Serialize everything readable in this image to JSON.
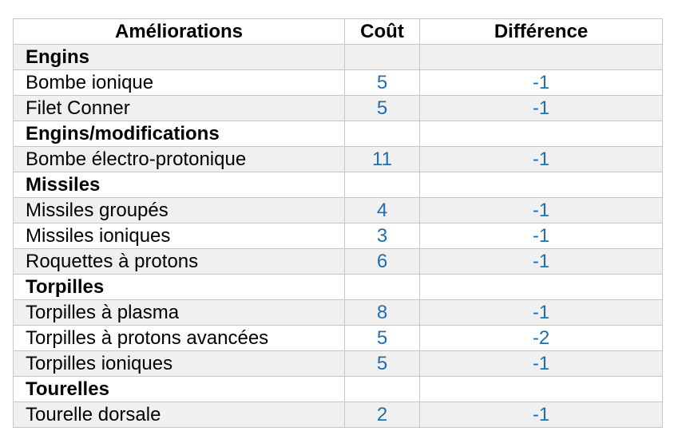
{
  "table": {
    "headers": {
      "improvements": "Améliorations",
      "cost": "Coût",
      "difference": "Différence"
    },
    "rows": [
      {
        "kind": "category",
        "label": "Engins",
        "cost": "",
        "difference": ""
      },
      {
        "kind": "item",
        "label": "Bombe ionique",
        "cost": "5",
        "difference": "-1"
      },
      {
        "kind": "item",
        "label": "Filet Conner",
        "cost": "5",
        "difference": "-1"
      },
      {
        "kind": "category",
        "label": "Engins/modifications",
        "cost": "",
        "difference": ""
      },
      {
        "kind": "item",
        "label": "Bombe électro-protonique",
        "cost": "11",
        "difference": "-1"
      },
      {
        "kind": "category",
        "label": "Missiles",
        "cost": "",
        "difference": ""
      },
      {
        "kind": "item",
        "label": "Missiles groupés",
        "cost": "4",
        "difference": "-1"
      },
      {
        "kind": "item",
        "label": "Missiles ioniques",
        "cost": "3",
        "difference": "-1"
      },
      {
        "kind": "item",
        "label": "Roquettes à protons",
        "cost": "6",
        "difference": "-1"
      },
      {
        "kind": "category",
        "label": "Torpilles",
        "cost": "",
        "difference": ""
      },
      {
        "kind": "item",
        "label": "Torpilles à plasma",
        "cost": "8",
        "difference": "-1"
      },
      {
        "kind": "item",
        "label": "Torpilles à protons avancées",
        "cost": "5",
        "difference": "-2"
      },
      {
        "kind": "item",
        "label": "Torpilles ioniques",
        "cost": "5",
        "difference": "-1"
      },
      {
        "kind": "category",
        "label": "Tourelles",
        "cost": "",
        "difference": ""
      },
      {
        "kind": "item",
        "label": "Tourelle dorsale",
        "cost": "2",
        "difference": "-1"
      }
    ]
  },
  "colors": {
    "number_text": "#1f6eb0",
    "row_shade": "#f0f0f0",
    "row_plain": "#ffffff",
    "border": "#c8c8c8"
  }
}
